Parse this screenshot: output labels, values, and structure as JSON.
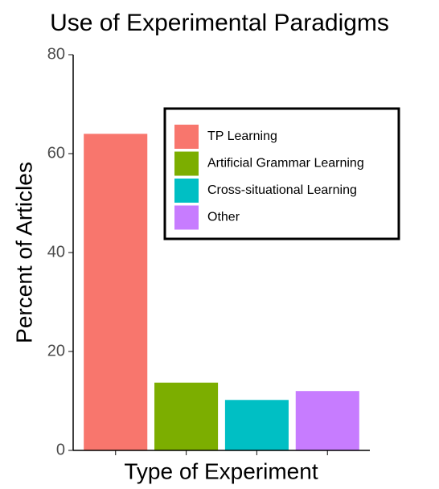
{
  "chart_data": {
    "type": "bar",
    "title": "Use of Experimental Paradigms",
    "x_label": "Type of Experiment",
    "y_label": "Percent of Articles",
    "categories": [
      "TP Learning",
      "Artificial Grammar Learning",
      "Cross-situational Learning",
      "Other"
    ],
    "values": [
      64,
      13.7,
      10.2,
      12
    ],
    "colors": [
      "#f8766d",
      "#7cae00",
      "#00bfc4",
      "#c77cff"
    ],
    "ylim": [
      0,
      80
    ],
    "yticks": [
      0,
      20,
      40,
      60,
      80
    ],
    "legend": "top-right"
  }
}
